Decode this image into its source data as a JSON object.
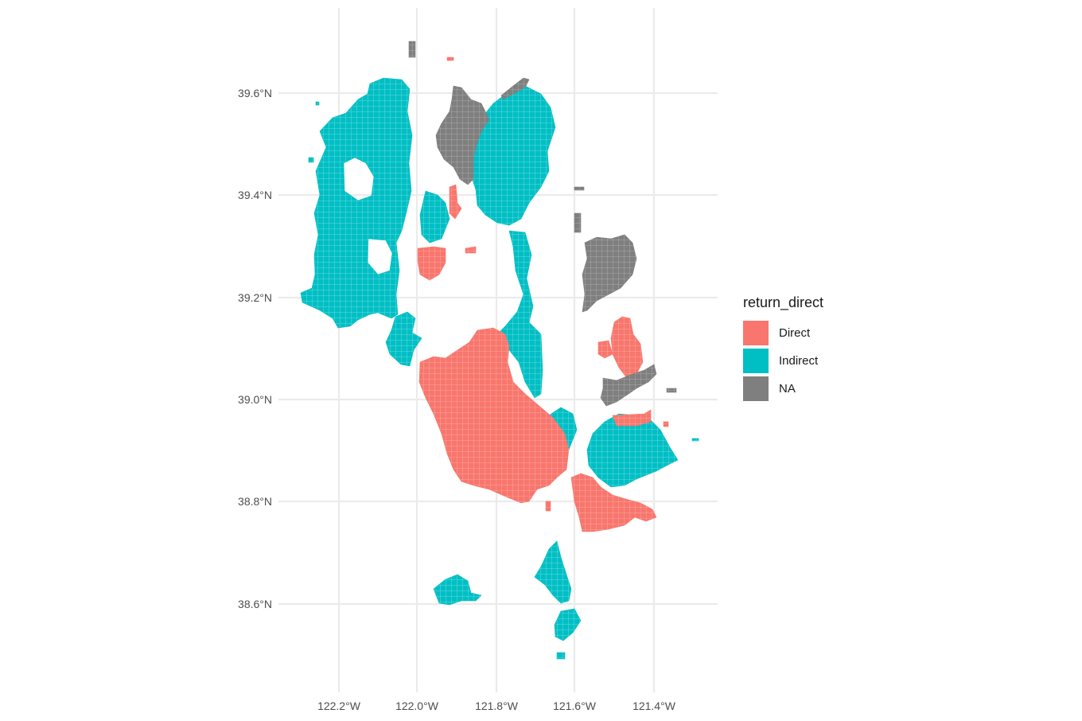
{
  "map": {
    "x_ticks": [
      "122.2°W",
      "122.0°W",
      "121.8°W",
      "121.6°W",
      "121.4°W"
    ],
    "y_ticks": [
      "39.6°N",
      "39.4°N",
      "39.2°N",
      "39.0°N",
      "38.8°N",
      "38.6°N"
    ]
  },
  "legend": {
    "title": "return_direct",
    "items": [
      {
        "label": "Direct",
        "color": "#f8766d"
      },
      {
        "label": "Indirect",
        "color": "#00bfc4"
      },
      {
        "label": "NA",
        "color": "#7f7f7f"
      }
    ]
  }
}
